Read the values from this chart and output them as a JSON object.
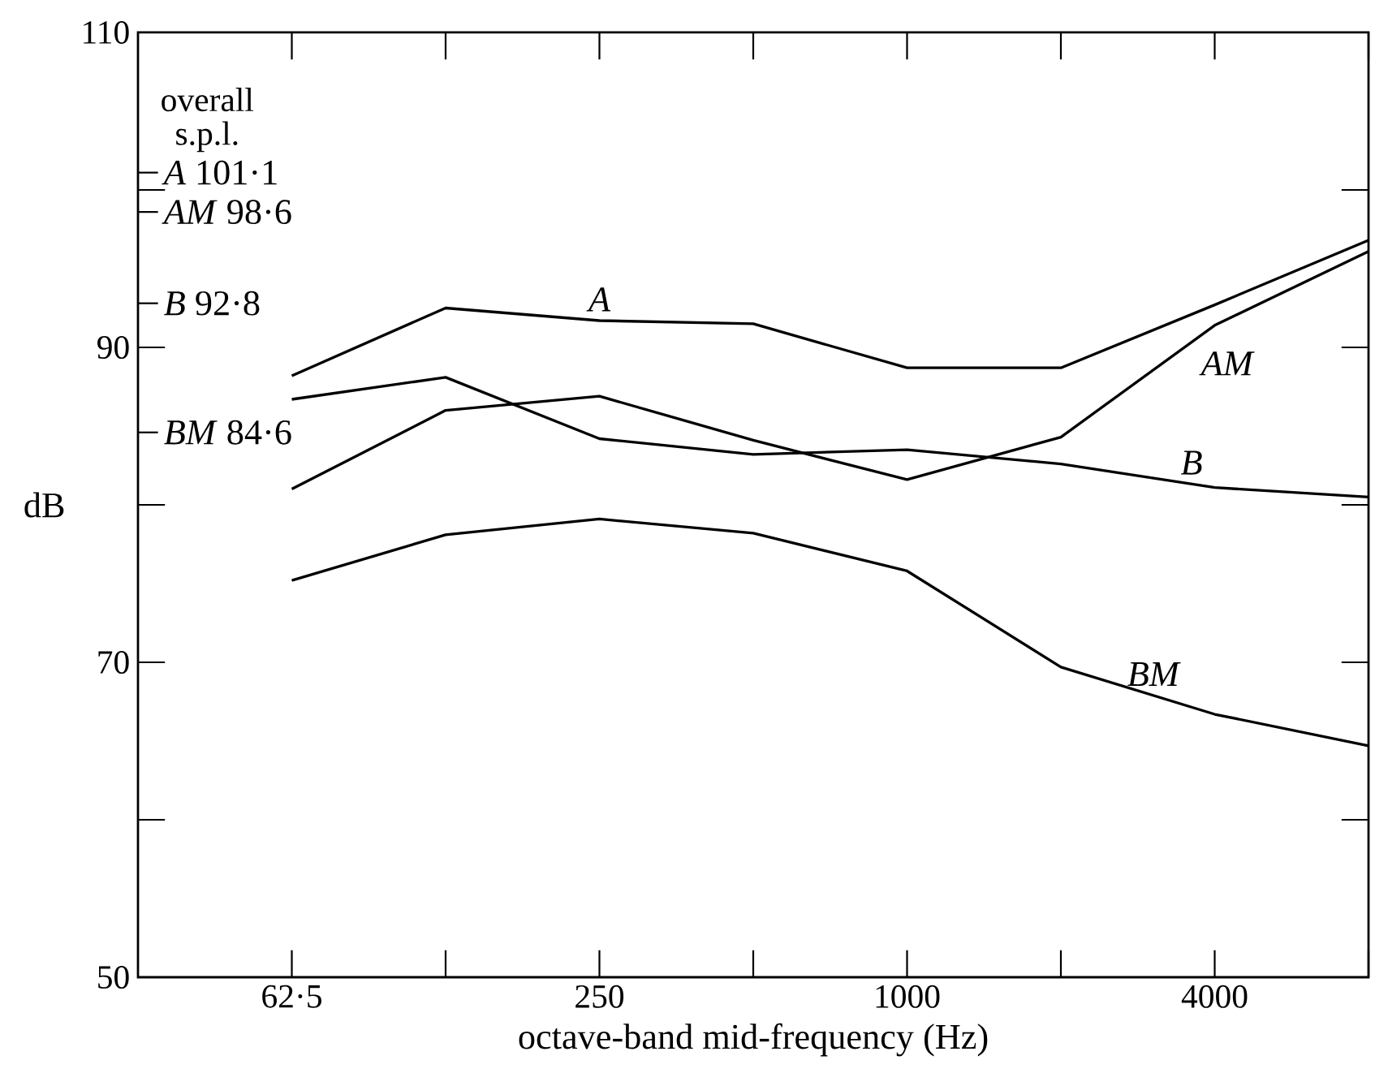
{
  "chart_data": {
    "type": "line",
    "xlabel": "octave-band mid-frequency (Hz)",
    "ylabel": "dB",
    "categories": [
      "62·5",
      null,
      "250",
      null,
      "1000",
      null,
      "4000",
      null
    ],
    "ylim": [
      50,
      110
    ],
    "yticks": [
      50,
      70,
      90,
      110
    ],
    "series": [
      {
        "name": "A",
        "color": "#000000",
        "values": [
          88.2,
          92.5,
          91.7,
          91.5,
          88.7,
          88.7,
          92.7,
          96.8
        ]
      },
      {
        "name": "AM",
        "color": "#000000",
        "values": [
          81.0,
          86.0,
          86.9,
          84.1,
          81.6,
          84.3,
          91.4,
          96.1
        ]
      },
      {
        "name": "B",
        "color": "#000000",
        "values": [
          86.7,
          88.1,
          84.2,
          83.2,
          83.5,
          82.6,
          81.1,
          80.5
        ]
      },
      {
        "name": "BM",
        "color": "#000000",
        "values": [
          75.2,
          78.1,
          79.1,
          78.2,
          75.8,
          69.7,
          66.7,
          64.7
        ]
      }
    ],
    "annotations": [
      "overall s.p.l."
    ],
    "ref_lines": [
      {
        "axis": "y",
        "value": 101.1,
        "label": "*A* 101·1"
      },
      {
        "axis": "y",
        "value": 98.6,
        "label": "*AM* 98·6"
      },
      {
        "axis": "y",
        "value": 92.8,
        "label": "*B* 92·8"
      },
      {
        "axis": "y",
        "value": 84.6,
        "label": "*BM* 84·6"
      }
    ],
    "legend": false,
    "grid": false,
    "marker": "none",
    "line_style": "solid"
  }
}
